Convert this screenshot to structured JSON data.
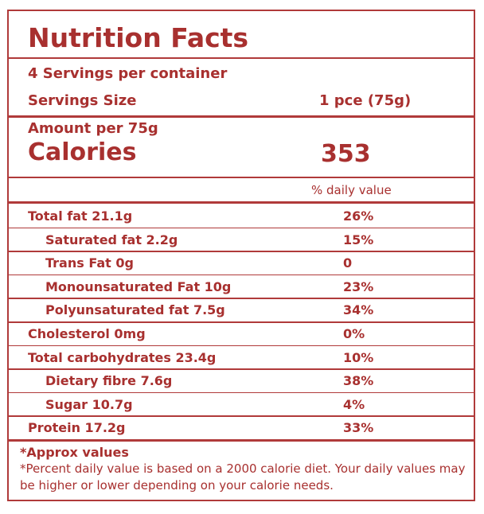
{
  "title": "Nutrition Facts",
  "servings_per_container": "4 Servings per container",
  "serving_size": {
    "label": "Servings Size",
    "value": "1 pce (75g)"
  },
  "amount_per": "Amount per 75g",
  "calories": {
    "label": "Calories",
    "value": "353"
  },
  "daily_value_header": "% daily value",
  "nutrients": [
    {
      "label": "Total fat 21.1g",
      "daily_value": "26%",
      "indent": false
    },
    {
      "label": "Saturated fat 2.2g",
      "daily_value": "15%",
      "indent": true
    },
    {
      "label": "Trans Fat 0g",
      "daily_value": "0",
      "indent": true
    },
    {
      "label": "Monounsaturated Fat 10g",
      "daily_value": "23%",
      "indent": true
    },
    {
      "label": "Polyunsaturated fat 7.5g",
      "daily_value": "34%",
      "indent": true
    },
    {
      "label": "Cholesterol 0mg",
      "daily_value": "0%",
      "indent": false
    },
    {
      "label": "Total carbohydrates 23.4g",
      "daily_value": "10%",
      "indent": false
    },
    {
      "label": "Dietary fibre 7.6g",
      "daily_value": "38%",
      "indent": true
    },
    {
      "label": "Sugar 10.7g",
      "daily_value": "4%",
      "indent": true
    },
    {
      "label": "Protein 17.2g",
      "daily_value": "33%",
      "indent": false
    }
  ],
  "footnotes": [
    "*Approx values",
    "*Percent daily value is based on a 2000 calorie diet. Your daily values may be higher or lower depending on your calorie needs."
  ]
}
